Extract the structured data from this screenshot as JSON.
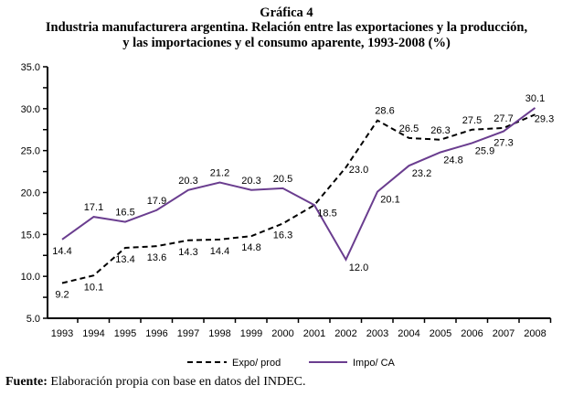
{
  "title_lines": [
    "Gráfica 4",
    "Industria manufacturera argentina. Relación entre las exportaciones y la producción,",
    "y las importaciones y el consumo aparente, 1993-2008 (%)"
  ],
  "source_label": "Fuente:",
  "source_text": " Elaboración propia con base en datos del INDEC.",
  "chart_data": {
    "type": "line",
    "title": "Industria manufacturera argentina. Relación entre las exportaciones y la producción, y las importaciones y el consumo aparente, 1993-2008 (%)",
    "x": [
      "1993",
      "1994",
      "1995",
      "1996",
      "1997",
      "1998",
      "1999",
      "2000",
      "2001",
      "2002",
      "2003",
      "2004",
      "2005",
      "2006",
      "2007",
      "2008"
    ],
    "ylim": [
      5,
      35
    ],
    "yticks": [
      "5.0",
      "10.0",
      "15.0",
      "20.0",
      "25.0",
      "30.0",
      "35.0"
    ],
    "legend_position": "bottom",
    "grid": false,
    "series": [
      {
        "name": "Expo/ prod",
        "style": "dashed",
        "color": "#000000",
        "values": [
          9.2,
          10.1,
          13.4,
          13.6,
          14.3,
          14.4,
          14.8,
          16.3,
          18.5,
          23.0,
          28.6,
          26.5,
          26.3,
          27.5,
          27.7,
          29.3
        ],
        "labels": [
          "9.2",
          "10.1",
          "13.4",
          "13.6",
          "14.3",
          "14.4",
          "14.8",
          "16.3",
          "",
          "23.0",
          "28.6",
          "26.5",
          "26.3",
          "27.5",
          "27.7",
          "29.3"
        ]
      },
      {
        "name": "Impo/ CA",
        "style": "solid",
        "color": "#6a3d8f",
        "values": [
          14.4,
          17.1,
          16.5,
          17.9,
          20.3,
          21.2,
          20.3,
          20.5,
          18.5,
          12.0,
          20.1,
          23.2,
          24.8,
          25.9,
          27.3,
          30.1
        ],
        "labels": [
          "14.4",
          "17.1",
          "16.5",
          "17.9",
          "20.3",
          "21.2",
          "20.3",
          "20.5",
          "18.5",
          "12.0",
          "20.1",
          "23.2",
          "24.8",
          "25.9",
          "27.3",
          "30.1"
        ]
      }
    ]
  }
}
